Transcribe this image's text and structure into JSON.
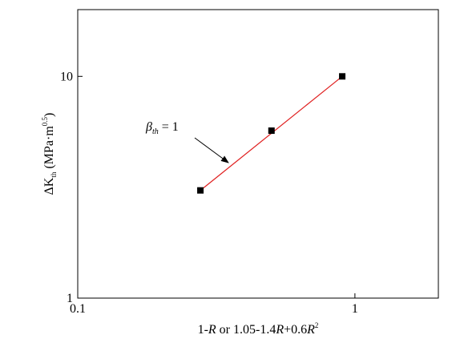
{
  "chart_data": {
    "type": "scatter",
    "xlabel": [
      "1-",
      "R",
      " or 1.05-1.4",
      "R",
      "+0.6",
      "R",
      "2"
    ],
    "ylabel": [
      "ΔK",
      "th",
      " (MPa·m",
      "0.5",
      ")"
    ],
    "annotation": [
      "β",
      "th",
      " = 1"
    ],
    "x": [
      0.277,
      0.5,
      0.9
    ],
    "values": [
      3.06,
      5.69,
      10.0
    ],
    "color": "#000000",
    "fit": {
      "x": [
        0.277,
        0.9
      ],
      "values": [
        3.06,
        10.0
      ],
      "color": "#e02020"
    },
    "xlim": [
      0.1,
      2
    ],
    "ylim": [
      1,
      20
    ],
    "xticks": [
      0.1,
      1
    ],
    "yticks": [
      1,
      10
    ],
    "log_x": true,
    "log_y": true
  }
}
